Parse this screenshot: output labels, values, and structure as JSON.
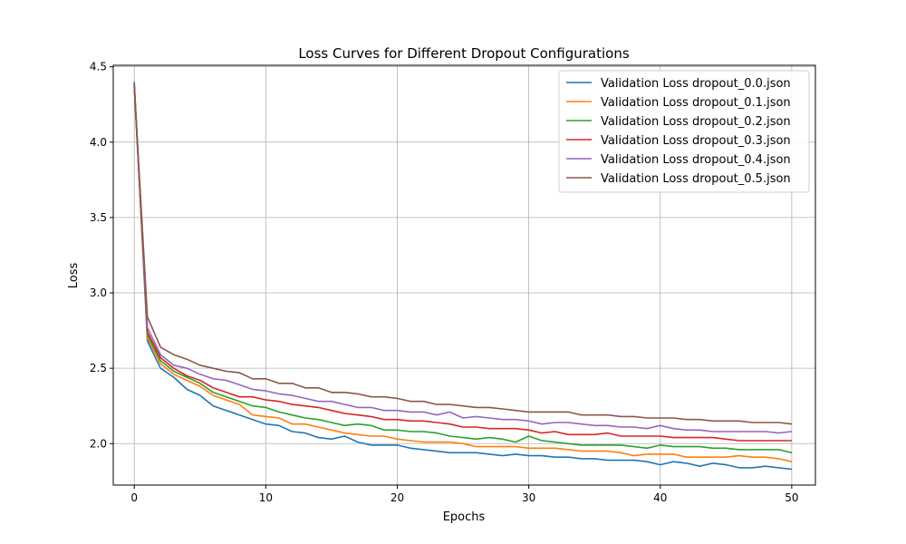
{
  "chart_data": {
    "type": "line",
    "title": "Loss Curves for Different Dropout Configurations",
    "xlabel": "Epochs",
    "ylabel": "Loss",
    "xlim": [
      -1.6,
      51.8
    ],
    "ylim": [
      1.725,
      4.51
    ],
    "xticks": [
      0,
      10,
      20,
      30,
      40,
      50
    ],
    "yticks": [
      2.0,
      2.5,
      3.0,
      3.5,
      4.0,
      4.5
    ],
    "grid": true,
    "legend_position": "top-right",
    "x": [
      0,
      1,
      2,
      3,
      4,
      5,
      6,
      7,
      8,
      9,
      10,
      11,
      12,
      13,
      14,
      15,
      16,
      17,
      18,
      19,
      20,
      21,
      22,
      23,
      24,
      25,
      26,
      27,
      28,
      29,
      30,
      31,
      32,
      33,
      34,
      35,
      36,
      37,
      38,
      39,
      40,
      41,
      42,
      43,
      44,
      45,
      46,
      47,
      48,
      49,
      50
    ],
    "series": [
      {
        "name": "Validation Loss dropout_0.0.json",
        "color": "#1f77b4",
        "values": [
          4.4,
          2.68,
          2.5,
          2.44,
          2.36,
          2.32,
          2.25,
          2.22,
          2.19,
          2.16,
          2.13,
          2.12,
          2.08,
          2.07,
          2.04,
          2.03,
          2.05,
          2.01,
          1.99,
          1.99,
          1.99,
          1.97,
          1.96,
          1.95,
          1.94,
          1.94,
          1.94,
          1.93,
          1.92,
          1.93,
          1.92,
          1.92,
          1.91,
          1.91,
          1.9,
          1.9,
          1.89,
          1.89,
          1.89,
          1.88,
          1.86,
          1.88,
          1.87,
          1.85,
          1.87,
          1.86,
          1.84,
          1.84,
          1.85,
          1.84,
          1.83
        ]
      },
      {
        "name": "Validation Loss dropout_0.1.json",
        "color": "#ff7f0e",
        "values": [
          4.38,
          2.7,
          2.53,
          2.46,
          2.42,
          2.38,
          2.32,
          2.29,
          2.26,
          2.19,
          2.18,
          2.17,
          2.13,
          2.13,
          2.11,
          2.09,
          2.07,
          2.06,
          2.05,
          2.05,
          2.03,
          2.02,
          2.01,
          2.01,
          2.01,
          2.0,
          1.98,
          1.98,
          1.98,
          1.98,
          1.97,
          1.97,
          1.97,
          1.96,
          1.95,
          1.95,
          1.95,
          1.94,
          1.92,
          1.93,
          1.93,
          1.93,
          1.91,
          1.91,
          1.91,
          1.91,
          1.92,
          1.91,
          1.91,
          1.9,
          1.88
        ]
      },
      {
        "name": "Validation Loss dropout_0.2.json",
        "color": "#2ca02c",
        "values": [
          4.37,
          2.72,
          2.55,
          2.48,
          2.44,
          2.4,
          2.34,
          2.31,
          2.28,
          2.25,
          2.24,
          2.21,
          2.19,
          2.17,
          2.16,
          2.14,
          2.12,
          2.13,
          2.12,
          2.09,
          2.09,
          2.08,
          2.08,
          2.07,
          2.05,
          2.04,
          2.03,
          2.04,
          2.03,
          2.01,
          2.05,
          2.02,
          2.01,
          2.0,
          1.99,
          1.99,
          1.99,
          1.99,
          1.98,
          1.97,
          1.99,
          1.98,
          1.98,
          1.98,
          1.97,
          1.97,
          1.96,
          1.96,
          1.96,
          1.96,
          1.94
        ]
      },
      {
        "name": "Validation Loss dropout_0.3.json",
        "color": "#d62728",
        "values": [
          4.38,
          2.74,
          2.57,
          2.5,
          2.45,
          2.42,
          2.37,
          2.34,
          2.31,
          2.31,
          2.29,
          2.28,
          2.26,
          2.25,
          2.24,
          2.22,
          2.2,
          2.19,
          2.18,
          2.16,
          2.16,
          2.15,
          2.15,
          2.14,
          2.13,
          2.11,
          2.11,
          2.1,
          2.1,
          2.1,
          2.09,
          2.07,
          2.08,
          2.06,
          2.06,
          2.06,
          2.07,
          2.05,
          2.05,
          2.05,
          2.05,
          2.04,
          2.04,
          2.04,
          2.04,
          2.03,
          2.02,
          2.02,
          2.02,
          2.02,
          2.02
        ]
      },
      {
        "name": "Validation Loss dropout_0.4.json",
        "color": "#9467bd",
        "values": [
          4.37,
          2.77,
          2.59,
          2.52,
          2.5,
          2.46,
          2.43,
          2.42,
          2.39,
          2.36,
          2.35,
          2.33,
          2.32,
          2.3,
          2.28,
          2.28,
          2.26,
          2.24,
          2.24,
          2.22,
          2.22,
          2.21,
          2.21,
          2.19,
          2.21,
          2.17,
          2.18,
          2.17,
          2.16,
          2.16,
          2.15,
          2.13,
          2.14,
          2.14,
          2.13,
          2.12,
          2.12,
          2.11,
          2.11,
          2.1,
          2.12,
          2.1,
          2.09,
          2.09,
          2.08,
          2.08,
          2.08,
          2.08,
          2.08,
          2.07,
          2.08
        ]
      },
      {
        "name": "Validation Loss dropout_0.5.json",
        "color": "#8c564b",
        "values": [
          4.37,
          2.84,
          2.64,
          2.59,
          2.56,
          2.52,
          2.5,
          2.48,
          2.47,
          2.43,
          2.43,
          2.4,
          2.4,
          2.37,
          2.37,
          2.34,
          2.34,
          2.33,
          2.31,
          2.31,
          2.3,
          2.28,
          2.28,
          2.26,
          2.26,
          2.25,
          2.24,
          2.24,
          2.23,
          2.22,
          2.21,
          2.21,
          2.21,
          2.21,
          2.19,
          2.19,
          2.19,
          2.18,
          2.18,
          2.17,
          2.17,
          2.17,
          2.16,
          2.16,
          2.15,
          2.15,
          2.15,
          2.14,
          2.14,
          2.14,
          2.13
        ]
      }
    ]
  }
}
